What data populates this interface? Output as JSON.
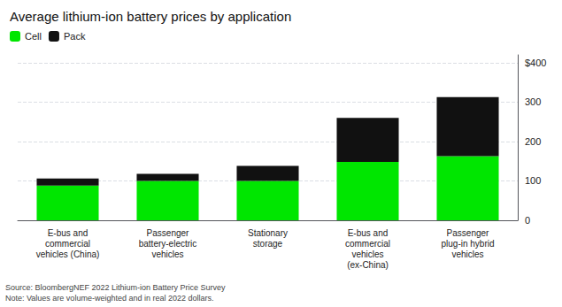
{
  "chart_data": {
    "type": "bar",
    "title": "Average lithium-ion battery prices by application",
    "categories": [
      "E-bus and\ncommercial\nvehicles (China)",
      "Passenger\nbattery-electric\nvehicles",
      "Stationary\nstorage",
      "E-bus and\ncommercial\nvehicles\n(ex-China)",
      "Passenger\nplug-in hybrid\nvehicles"
    ],
    "series": [
      {
        "name": "Cell",
        "color": "#00e600",
        "values": [
          88,
          100,
          100,
          148,
          163
        ]
      },
      {
        "name": "Pack",
        "color": "#111111",
        "values": [
          18,
          18,
          38,
          112,
          150
        ]
      }
    ],
    "stacked": true,
    "ylim": [
      0,
      420
    ],
    "yticks": [
      0,
      100,
      200,
      300,
      {
        "value": 400,
        "label": "$400"
      }
    ],
    "grid": true,
    "legend": "upper left",
    "annotations": [
      "Source: BloombergNEF 2022 Lithium-ion Battery Price Survey\nNote: Values are volume-weighted and in real 2022 dollars."
    ]
  }
}
